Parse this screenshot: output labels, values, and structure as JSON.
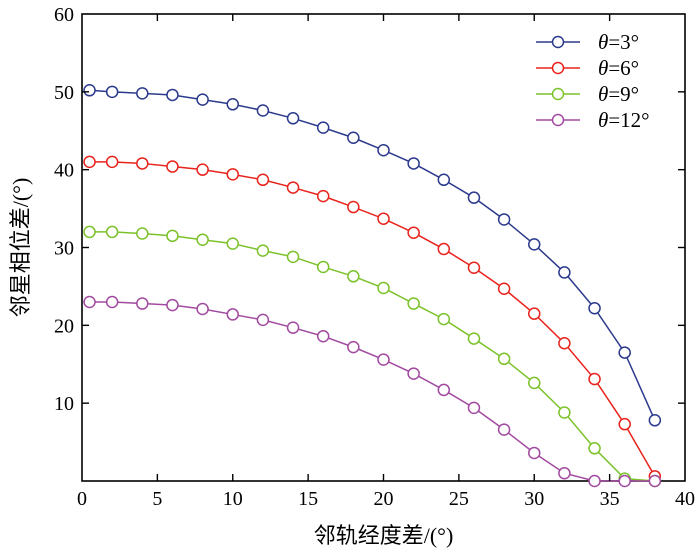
{
  "chart_data": {
    "type": "line",
    "xlabel": "邻轨经度差/(°)",
    "ylabel": "邻星相位差/(°)",
    "xlim": [
      0,
      40
    ],
    "ylim": [
      0,
      60
    ],
    "xticks": [
      "0",
      "5",
      "10",
      "15",
      "20",
      "25",
      "30",
      "35",
      "40"
    ],
    "yticks": [
      "10",
      "20",
      "30",
      "40",
      "50",
      "60"
    ],
    "grid": false,
    "legend_position": "top-right",
    "marker": "open-circle",
    "series": [
      {
        "name": "θ=3°",
        "symbol": "θ",
        "suffix": "=3°",
        "color": "#2b3a8c",
        "x": [
          0.5,
          2,
          4,
          6,
          8,
          10,
          12,
          14,
          16,
          18,
          20,
          22,
          24,
          26,
          28,
          30,
          32,
          34,
          36,
          38
        ],
        "y": [
          50.2,
          50.0,
          49.8,
          49.6,
          49.0,
          48.4,
          47.6,
          46.6,
          45.4,
          44.1,
          42.5,
          40.8,
          38.7,
          36.4,
          33.6,
          30.4,
          26.8,
          22.2,
          16.5,
          7.8
        ]
      },
      {
        "name": "θ=6°",
        "symbol": "θ",
        "suffix": "=6°",
        "color": "#e8231c",
        "x": [
          0.5,
          2,
          4,
          6,
          8,
          10,
          12,
          14,
          16,
          18,
          20,
          22,
          24,
          26,
          28,
          30,
          32,
          34,
          36,
          38
        ],
        "y": [
          41.0,
          41.0,
          40.8,
          40.4,
          40.0,
          39.4,
          38.7,
          37.7,
          36.6,
          35.2,
          33.7,
          31.9,
          29.8,
          27.4,
          24.7,
          21.5,
          17.7,
          13.1,
          7.3,
          0.6
        ]
      },
      {
        "name": "θ=9°",
        "symbol": "θ",
        "suffix": "=9°",
        "color": "#7cc22b",
        "x": [
          0.5,
          2,
          4,
          6,
          8,
          10,
          12,
          14,
          16,
          18,
          20,
          22,
          24,
          26,
          28,
          30,
          32,
          34,
          36,
          38
        ],
        "y": [
          32.0,
          32.0,
          31.8,
          31.5,
          31.0,
          30.5,
          29.6,
          28.8,
          27.5,
          26.3,
          24.8,
          22.8,
          20.8,
          18.3,
          15.7,
          12.6,
          8.8,
          4.2,
          0.3,
          0.0
        ]
      },
      {
        "name": "θ=12°",
        "symbol": "θ",
        "suffix": "=12°",
        "color": "#a24aa0",
        "x": [
          0.5,
          2,
          4,
          6,
          8,
          10,
          12,
          14,
          16,
          18,
          20,
          22,
          24,
          26,
          28,
          30,
          32,
          34,
          36,
          38
        ],
        "y": [
          23.0,
          23.0,
          22.8,
          22.6,
          22.1,
          21.4,
          20.7,
          19.7,
          18.6,
          17.2,
          15.6,
          13.8,
          11.7,
          9.4,
          6.6,
          3.6,
          1.0,
          0.0,
          0.0,
          0.0
        ]
      }
    ]
  }
}
